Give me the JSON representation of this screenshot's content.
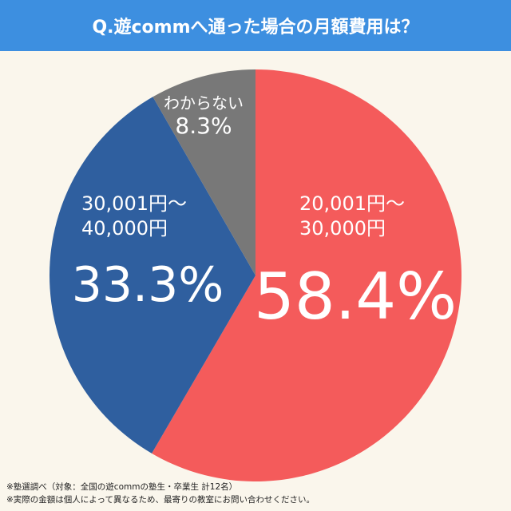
{
  "chart_data": {
    "type": "pie",
    "title": "Q.遊commへ通った場合の月額費用は？",
    "categories": [
      "20,001円～\n30,000円",
      "30,001円～\n40,000円",
      "わからない"
    ],
    "values": [
      58.4,
      33.3,
      8.3
    ],
    "value_labels": [
      "58.4%",
      "33.3%",
      "8.3%"
    ],
    "colors": [
      "#f45b5b",
      "#2f5f9f",
      "#787878"
    ],
    "notes": [
      "※塾選調べ（対象：全国の遊commの塾生・卒業生 計12名）",
      "※実際の金額は個人によって異なるため、最寄りの教室にお問い合わせください。"
    ]
  }
}
